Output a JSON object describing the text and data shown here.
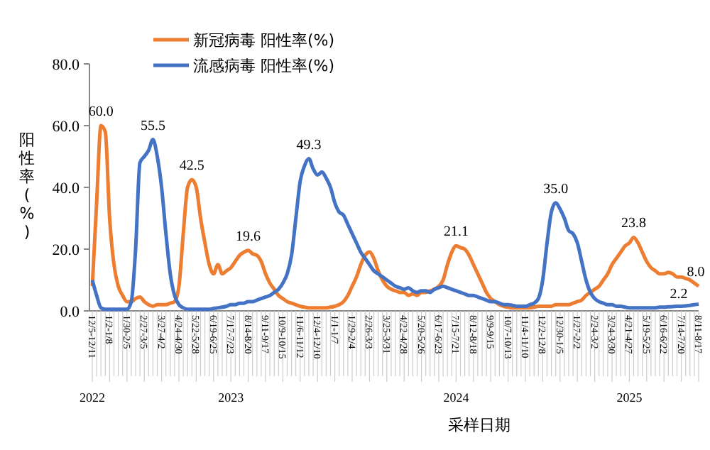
{
  "chart_data": {
    "type": "line",
    "ylabel": "阳性率(%)",
    "xlabel": "采样日期",
    "categories": [
      "12/5-12/11",
      null,
      null,
      null,
      "1/2-1/8",
      null,
      null,
      null,
      "1/30-2/5",
      null,
      null,
      null,
      "2/27-3/5",
      null,
      null,
      null,
      "3/27-4/2",
      null,
      null,
      null,
      "4/24-4/30",
      null,
      null,
      null,
      "5/22-5/28",
      null,
      null,
      null,
      "6/19-6/25",
      null,
      null,
      null,
      "7/17-7/23",
      null,
      null,
      null,
      "8/14-8/20",
      null,
      null,
      null,
      "9/11-9/17",
      null,
      null,
      null,
      "10/9-10/15",
      null,
      null,
      null,
      "11/6-11/12",
      null,
      null,
      null,
      "12/4-12/10",
      null,
      null,
      null,
      "1/1-1/7",
      null,
      null,
      null,
      "1/29-2/4",
      null,
      null,
      null,
      "2/26-3/3",
      null,
      null,
      null,
      "3/25-3/31",
      null,
      null,
      null,
      "4/22-4/28",
      null,
      null,
      null,
      "5/20-5/26",
      null,
      null,
      null,
      "6/17-6/23",
      null,
      null,
      null,
      "7/15-7/21",
      null,
      null,
      null,
      "8/12-8/18",
      null,
      null,
      null,
      "9/9-9/15",
      null,
      null,
      null,
      "10/7-10/13",
      null,
      null,
      null,
      "11/4-11/10",
      null,
      null,
      null,
      "12/2-12/8",
      null,
      null,
      null,
      "12/30-1/5",
      null,
      null,
      null,
      "1/27-2/2",
      null,
      null,
      null,
      "2/24-3/2",
      null,
      null,
      null,
      "3/24-3/30",
      null,
      null,
      null,
      "4/21-4/27",
      null,
      null,
      null,
      "5/19-5/25",
      null,
      null,
      null,
      "6/16-6/22",
      null,
      null,
      null,
      "7/14-7/20",
      null,
      null,
      null,
      "8/11-8/17"
    ],
    "series": [
      {
        "name": "新冠病毒 阳性率(%)",
        "color": "#ed7d31",
        "values": [
          8,
          35,
          60,
          58,
          30,
          15,
          8,
          5,
          3,
          3,
          4,
          4.5,
          3,
          2,
          1.5,
          2,
          2,
          2,
          2.5,
          3,
          8,
          25,
          40,
          42.5,
          40,
          30,
          22,
          15,
          12,
          15,
          12,
          13,
          14,
          16,
          18,
          19,
          19.6,
          18.5,
          18,
          16,
          12,
          9,
          7,
          5,
          4,
          3,
          2.5,
          2,
          1.5,
          1.2,
          1,
          1,
          1,
          1,
          1,
          1.2,
          1.5,
          2,
          3,
          5,
          8,
          11,
          15,
          18,
          19.1,
          17,
          13,
          10,
          8,
          7,
          6.5,
          6,
          6,
          5,
          5.5,
          5,
          6,
          6,
          6.5,
          7,
          8,
          10,
          15,
          19,
          21.1,
          20.5,
          20,
          18,
          15,
          12,
          9,
          6,
          4,
          3,
          2,
          1.5,
          1.2,
          1,
          1,
          1,
          1,
          1,
          1.2,
          1.5,
          1.5,
          1.5,
          1.5,
          2,
          2,
          2,
          2,
          2.5,
          3,
          3.5,
          5,
          6,
          7,
          8,
          10,
          12,
          15,
          17,
          19,
          21,
          22,
          23.8,
          22,
          19,
          16,
          14,
          13,
          12,
          12,
          12.5,
          12,
          11,
          11,
          10.5,
          10,
          9,
          8
        ],
        "value_labels": [
          null,
          null,
          "60.0",
          null,
          null,
          null,
          null,
          null,
          null,
          null,
          null,
          null,
          null,
          null,
          null,
          null,
          null,
          null,
          null,
          null,
          null,
          null,
          null,
          "42.5",
          null,
          null,
          null,
          null,
          null,
          null,
          null,
          null,
          null,
          null,
          null,
          null,
          "19.6",
          null,
          null,
          null,
          null,
          null,
          null,
          null,
          null,
          null,
          null,
          null,
          null,
          null,
          null,
          null,
          null,
          null,
          null,
          null,
          null,
          null,
          null,
          null,
          null,
          null,
          null,
          null,
          null,
          null,
          null,
          null,
          null,
          null,
          null,
          null,
          null,
          null,
          null,
          null,
          null,
          null,
          null,
          null,
          null,
          null,
          null,
          null,
          "21.1",
          null,
          null,
          null,
          null,
          null,
          null,
          null,
          null,
          null,
          null,
          null,
          null,
          null,
          null,
          null,
          null,
          null,
          null,
          null,
          null,
          null,
          null,
          null,
          null,
          null,
          null,
          null,
          null,
          null,
          null,
          null,
          null,
          null,
          null,
          null,
          null,
          null,
          null,
          null,
          null,
          "23.8",
          null,
          null,
          null,
          null,
          null,
          null,
          null,
          null,
          null,
          null,
          null,
          null,
          null,
          null,
          "8.0"
        ]
      },
      {
        "name": "流感病毒 阳性率(%)",
        "color": "#4472c4",
        "values": [
          10,
          5,
          1,
          0.5,
          0.5,
          0.5,
          0.5,
          0.5,
          0.5,
          3,
          20,
          48,
          50,
          52,
          55.5,
          50,
          40,
          25,
          12,
          5,
          2,
          1,
          0.5,
          0.5,
          0.5,
          0.5,
          0.5,
          0.5,
          0.8,
          1,
          1.2,
          1.5,
          2,
          2,
          2.5,
          2.5,
          3,
          3,
          3.5,
          4,
          4.5,
          5,
          6,
          7,
          9,
          12,
          18,
          30,
          42,
          47,
          49.3,
          46,
          44,
          45,
          43,
          40,
          35,
          32,
          31,
          28,
          25,
          22,
          19,
          17,
          15,
          13,
          12,
          11,
          10,
          9,
          8,
          7.5,
          7,
          7.5,
          6.5,
          6,
          6.5,
          6.5,
          6,
          7,
          7.5,
          8,
          7.5,
          7,
          6.5,
          6,
          5.5,
          5,
          5,
          4.5,
          4,
          3.5,
          3,
          3,
          2.5,
          2,
          2,
          1.8,
          1.5,
          1.5,
          1.5,
          2,
          2.5,
          4,
          10,
          22,
          32,
          35,
          33,
          30,
          26,
          25,
          22,
          16,
          10,
          6,
          4,
          3,
          2.5,
          2,
          2,
          1.5,
          1.5,
          1.2,
          1,
          1,
          1,
          1,
          1,
          1,
          1,
          1.2,
          1.2,
          1.3,
          1.4,
          1.5,
          1.5,
          1.6,
          1.8,
          2,
          2.2
        ],
        "value_labels": [
          null,
          null,
          null,
          null,
          null,
          null,
          null,
          null,
          null,
          null,
          null,
          null,
          null,
          null,
          "55.5",
          null,
          null,
          null,
          null,
          null,
          null,
          null,
          null,
          null,
          null,
          null,
          null,
          null,
          null,
          null,
          null,
          null,
          null,
          null,
          null,
          null,
          null,
          null,
          null,
          null,
          null,
          null,
          null,
          null,
          null,
          null,
          null,
          null,
          null,
          null,
          "49.3",
          null,
          null,
          null,
          null,
          null,
          null,
          null,
          null,
          null,
          null,
          null,
          null,
          null,
          null,
          null,
          null,
          null,
          null,
          null,
          null,
          null,
          null,
          null,
          null,
          null,
          null,
          null,
          null,
          null,
          null,
          null,
          null,
          null,
          null,
          null,
          null,
          null,
          null,
          null,
          null,
          null,
          null,
          null,
          null,
          null,
          null,
          null,
          null,
          null,
          null,
          null,
          null,
          null,
          null,
          null,
          null,
          "35.0",
          null,
          null,
          null,
          null,
          null,
          null,
          null,
          null,
          null,
          null,
          null,
          null,
          null,
          null,
          null,
          null,
          null,
          null,
          null,
          null,
          null,
          null,
          null,
          null,
          null,
          null,
          null,
          null,
          null,
          null,
          null,
          null,
          "2.2"
        ]
      }
    ],
    "ylim": [
      0,
      80
    ],
    "yticks": [
      {
        "value": 0,
        "label": "0.0"
      },
      {
        "value": 20,
        "label": "20.0"
      },
      {
        "value": 40,
        "label": "40.0"
      },
      {
        "value": 60,
        "label": "60.0"
      },
      {
        "value": 80,
        "label": "80.0"
      }
    ],
    "annotations": [
      {
        "text": "2022",
        "x": "12/5-12/11"
      },
      {
        "text": "2023",
        "x": "7/17-7/23"
      },
      {
        "text": "2024",
        "x": "7/15-7/21"
      },
      {
        "text": "2025",
        "x": "4/21-4/27"
      }
    ],
    "legend": "top left",
    "grid": false,
    "marker": "none",
    "line_style": "solid"
  }
}
